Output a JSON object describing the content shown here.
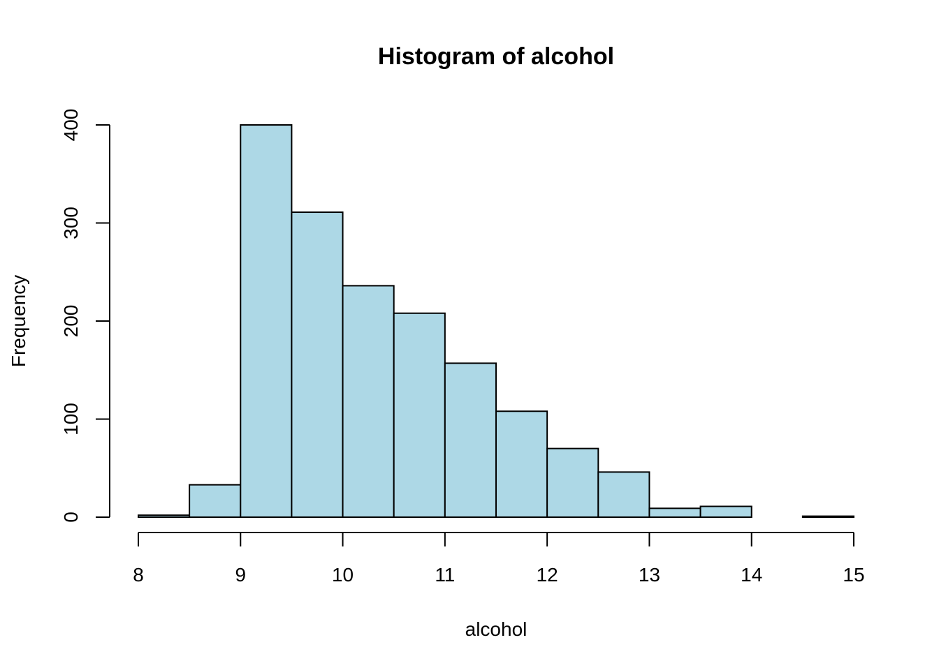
{
  "chart_data": {
    "type": "bar",
    "title": "Histogram of alcohol",
    "xlabel": "alcohol",
    "ylabel": "Frequency",
    "bin_edges": [
      8,
      8.5,
      9,
      9.5,
      10,
      10.5,
      11,
      11.5,
      12,
      12.5,
      13,
      13.5,
      14,
      14.5,
      15
    ],
    "values": [
      2,
      33,
      400,
      311,
      236,
      208,
      157,
      108,
      70,
      46,
      9,
      11,
      0,
      1
    ],
    "xlim": [
      8,
      15
    ],
    "ylim": [
      0,
      400
    ],
    "xticks": [
      8,
      9,
      10,
      11,
      12,
      13,
      14,
      15
    ],
    "yticks": [
      0,
      100,
      200,
      300,
      400
    ],
    "bar_color": "#ADD8E6",
    "grid": false
  }
}
